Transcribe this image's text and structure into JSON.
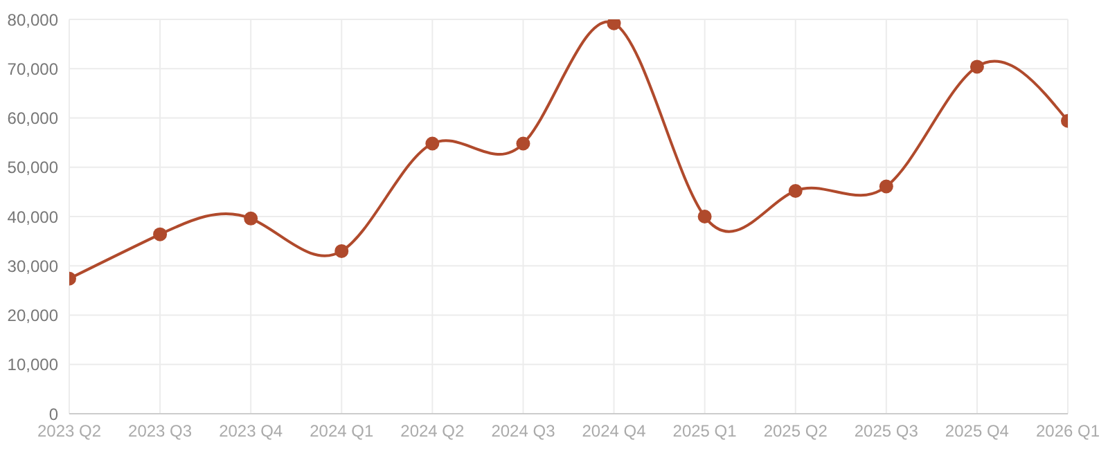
{
  "chart_data": {
    "type": "line",
    "categories": [
      "2023 Q2",
      "2023 Q3",
      "2023 Q4",
      "2024 Q1",
      "2024 Q2",
      "2024 Q3",
      "2024 Q4",
      "2025 Q1",
      "2025 Q2",
      "2025 Q3",
      "2025 Q4",
      "2026 Q1"
    ],
    "series": [
      {
        "color": "#b04a2c",
        "values": [
          27400,
          36400,
          39600,
          33000,
          54800,
          54800,
          79200,
          40000,
          45200,
          46100,
          70400,
          59400
        ]
      }
    ],
    "ylim": [
      0,
      80000
    ],
    "yticks": [
      {
        "value": 0,
        "label": "0"
      },
      {
        "value": 10000,
        "label": "10,000"
      },
      {
        "value": 20000,
        "label": "20,000"
      },
      {
        "value": 30000,
        "label": "30,000"
      },
      {
        "value": 40000,
        "label": "40,000"
      },
      {
        "value": 50000,
        "label": "50,000"
      },
      {
        "value": 60000,
        "label": "60,000"
      },
      {
        "value": 70000,
        "label": "70,000"
      },
      {
        "value": 80000,
        "label": "80,000"
      }
    ],
    "grid": true,
    "marker": "circle",
    "line_style": "solid"
  }
}
